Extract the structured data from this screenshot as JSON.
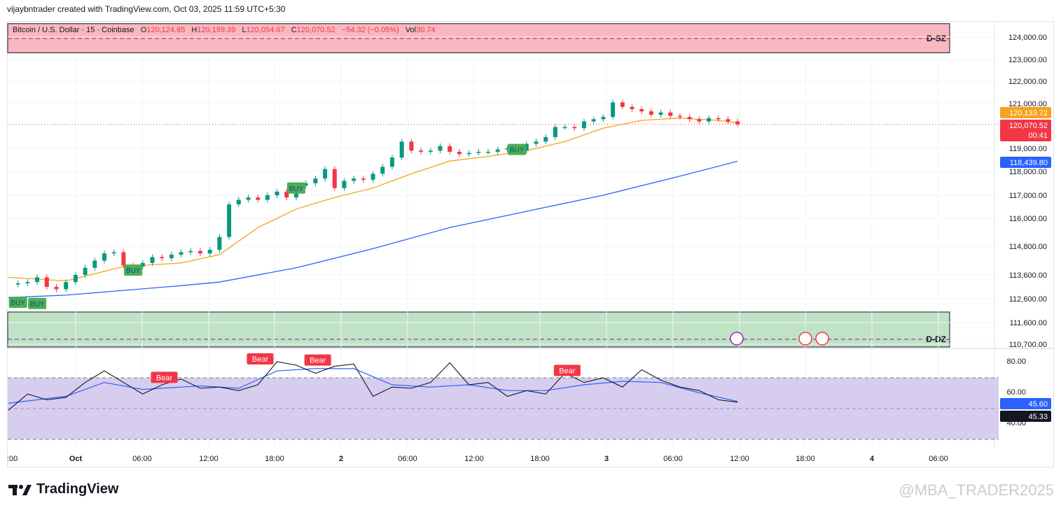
{
  "header": {
    "note": "vijaybntrader created with TradingView.com, Oct 03, 2025 11:59 UTC+5:30"
  },
  "legend": {
    "symbol": "Bitcoin / U.S. Dollar · 15 · Coinbase",
    "o_label": "O",
    "o": "120,124.85",
    "h_label": "H",
    "h": "120,159.39",
    "l_label": "L",
    "l": "120,054.67",
    "c_label": "C",
    "c": "120,070.52",
    "change": "−54.32 (−0.05%)",
    "vol_label": "Vol",
    "vol": "30.74"
  },
  "zones": {
    "supply": "D-SZ",
    "demand": "D-DZ"
  },
  "price_badges": {
    "ema_fast": "120,133.72",
    "last": "120,070.52",
    "countdown": "00:41",
    "ema_slow": "118,439.80"
  },
  "rsi_badges": {
    "rsi": "45.33",
    "rsi_ma": "45.60"
  },
  "labels": {
    "buy": "BUY",
    "bear": "Bear"
  },
  "branding": {
    "logo": "TradingView",
    "watermark": "@MBA_TRADER2025"
  },
  "colors": {
    "up": "#089981",
    "down": "#f23645",
    "ema_fast": "#f7a21b",
    "ema_slow": "#2962ff",
    "supply_zone": "#f9b7c0",
    "demand_zone": "#bfe3c4",
    "rsi_band": "#d7cdef"
  },
  "chart_data": {
    "type": "candlestick",
    "price_axis": [
      "124,000.00",
      "123,000.00",
      "122,000.00",
      "121,000.00",
      "119,000.00",
      "118,000.00",
      "117,000.00",
      "116,000.00",
      "114,800.00",
      "113,600.00",
      "112,600.00",
      "111,600.00",
      "110,700.00"
    ],
    "rsi_axis": [
      "80.00",
      "60.00",
      "40.00"
    ],
    "time_axis": [
      ":00",
      "Oct",
      "06:00",
      "12:00",
      "18:00",
      "2",
      "06:00",
      "12:00",
      "18:00",
      "3",
      "06:00",
      "12:00",
      "18:00",
      "4",
      "06:00"
    ],
    "last_price": 120070.52,
    "ema_fast_last": 120133.72,
    "ema_slow_last": 118439.8,
    "supply_zone": {
      "label": "D-SZ",
      "low": 123300,
      "high": 124600
    },
    "demand_zone": {
      "label": "D-DZ",
      "low": 110700,
      "high": 112150
    },
    "price_path": [
      [
        0,
        113200
      ],
      [
        1,
        113250
      ],
      [
        2,
        113300
      ],
      [
        3,
        113500
      ],
      [
        4,
        113100
      ],
      [
        5,
        113000
      ],
      [
        6,
        113300
      ],
      [
        7,
        113600
      ],
      [
        8,
        113900
      ],
      [
        9,
        114200
      ],
      [
        10,
        114500
      ],
      [
        11,
        114550
      ],
      [
        12,
        114000
      ],
      [
        13,
        113950
      ],
      [
        14,
        114100
      ],
      [
        15,
        114350
      ],
      [
        16,
        114300
      ],
      [
        17,
        114450
      ],
      [
        18,
        114550
      ],
      [
        19,
        114600
      ],
      [
        20,
        114500
      ],
      [
        21,
        114650
      ],
      [
        22,
        115200
      ],
      [
        23,
        116600
      ],
      [
        24,
        116800
      ],
      [
        25,
        116900
      ],
      [
        26,
        116800
      ],
      [
        27,
        117000
      ],
      [
        28,
        117150
      ],
      [
        29,
        116900
      ],
      [
        30,
        117400
      ],
      [
        31,
        117500
      ],
      [
        32,
        117700
      ],
      [
        33,
        118100
      ],
      [
        34,
        117300
      ],
      [
        35,
        117600
      ],
      [
        36,
        117700
      ],
      [
        37,
        117650
      ],
      [
        38,
        117900
      ],
      [
        39,
        118200
      ],
      [
        40,
        118600
      ],
      [
        41,
        119300
      ],
      [
        42,
        118900
      ],
      [
        43,
        118850
      ],
      [
        44,
        118900
      ],
      [
        45,
        119100
      ],
      [
        46,
        118850
      ],
      [
        47,
        118750
      ],
      [
        48,
        118800
      ],
      [
        49,
        118850
      ],
      [
        50,
        118850
      ],
      [
        51,
        118950
      ],
      [
        52,
        119000
      ],
      [
        53,
        118900
      ],
      [
        54,
        119200
      ],
      [
        55,
        119300
      ],
      [
        56,
        119500
      ],
      [
        57,
        119950
      ],
      [
        58,
        119950
      ],
      [
        59,
        119900
      ],
      [
        60,
        120200
      ],
      [
        61,
        120300
      ],
      [
        62,
        120400
      ],
      [
        63,
        121050
      ],
      [
        64,
        120850
      ],
      [
        65,
        120750
      ],
      [
        66,
        120650
      ],
      [
        67,
        120500
      ],
      [
        68,
        120600
      ],
      [
        69,
        120450
      ],
      [
        70,
        120400
      ],
      [
        71,
        120300
      ],
      [
        72,
        120200
      ],
      [
        73,
        120350
      ],
      [
        74,
        120300
      ],
      [
        75,
        120200
      ],
      [
        76,
        120070
      ]
    ],
    "ema_fast_path": [
      [
        0,
        113500
      ],
      [
        6,
        113350
      ],
      [
        12,
        113950
      ],
      [
        18,
        114100
      ],
      [
        22,
        114450
      ],
      [
        26,
        115600
      ],
      [
        30,
        116400
      ],
      [
        34,
        116900
      ],
      [
        38,
        117300
      ],
      [
        42,
        117900
      ],
      [
        46,
        118450
      ],
      [
        50,
        118650
      ],
      [
        54,
        118900
      ],
      [
        58,
        119300
      ],
      [
        62,
        119900
      ],
      [
        66,
        120250
      ],
      [
        70,
        120350
      ],
      [
        74,
        120250
      ],
      [
        76,
        120133
      ]
    ],
    "ema_slow_path": [
      [
        0,
        112650
      ],
      [
        6,
        112750
      ],
      [
        12,
        112950
      ],
      [
        18,
        113150
      ],
      [
        22,
        113300
      ],
      [
        30,
        113900
      ],
      [
        38,
        114700
      ],
      [
        46,
        115600
      ],
      [
        54,
        116300
      ],
      [
        62,
        117000
      ],
      [
        70,
        117800
      ],
      [
        76,
        118440
      ]
    ],
    "rsi_path": [
      [
        0,
        38
      ],
      [
        2,
        52
      ],
      [
        4,
        47
      ],
      [
        6,
        49
      ],
      [
        8,
        62
      ],
      [
        10,
        72
      ],
      [
        12,
        62
      ],
      [
        14,
        52
      ],
      [
        16,
        60
      ],
      [
        18,
        65
      ],
      [
        20,
        57
      ],
      [
        22,
        58
      ],
      [
        24,
        55
      ],
      [
        26,
        60
      ],
      [
        28,
        80
      ],
      [
        30,
        77
      ],
      [
        32,
        70
      ],
      [
        34,
        76
      ],
      [
        36,
        78
      ],
      [
        38,
        50
      ],
      [
        40,
        58
      ],
      [
        42,
        57
      ],
      [
        44,
        62
      ],
      [
        46,
        79
      ],
      [
        48,
        60
      ],
      [
        50,
        62
      ],
      [
        52,
        50
      ],
      [
        54,
        55
      ],
      [
        56,
        52
      ],
      [
        58,
        70
      ],
      [
        60,
        62
      ],
      [
        62,
        66
      ],
      [
        64,
        58
      ],
      [
        66,
        73
      ],
      [
        68,
        64
      ],
      [
        70,
        58
      ],
      [
        72,
        55
      ],
      [
        74,
        47
      ],
      [
        76,
        45
      ]
    ],
    "rsi_ma_path": [
      [
        0,
        44
      ],
      [
        6,
        50
      ],
      [
        10,
        62
      ],
      [
        14,
        56
      ],
      [
        20,
        59
      ],
      [
        24,
        57
      ],
      [
        28,
        72
      ],
      [
        32,
        74
      ],
      [
        36,
        74
      ],
      [
        40,
        60
      ],
      [
        44,
        58
      ],
      [
        48,
        60
      ],
      [
        52,
        55
      ],
      [
        56,
        55
      ],
      [
        60,
        60
      ],
      [
        64,
        63
      ],
      [
        68,
        62
      ],
      [
        72,
        53
      ],
      [
        76,
        45.6
      ]
    ],
    "rsi_last": 45.33,
    "rsi_ma_last": 45.6,
    "buy_signals": [
      [
        1,
        112450
      ],
      [
        3,
        112400
      ],
      [
        13,
        113800
      ],
      [
        30,
        117300
      ],
      [
        53,
        118950
      ]
    ],
    "bear_signals": [
      [
        15,
        64
      ],
      [
        25,
        80
      ],
      [
        31,
        79
      ],
      [
        57,
        70
      ]
    ]
  }
}
